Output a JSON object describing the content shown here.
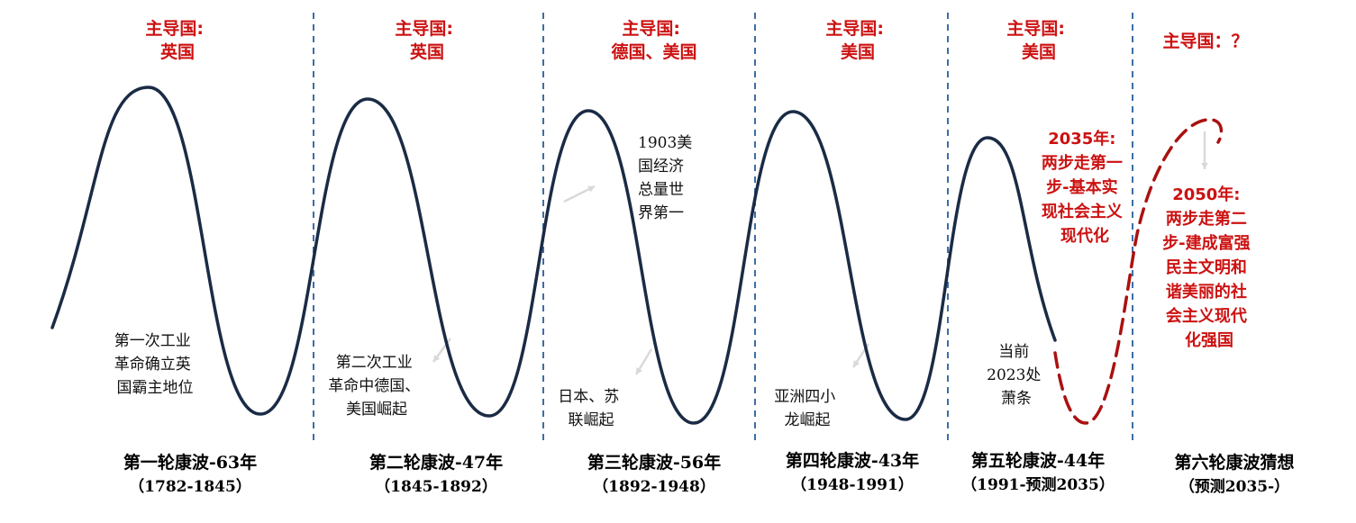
{
  "colors": {
    "wave": "#1a2b45",
    "forecast": "#aa1111",
    "divider": "#3d6ea5",
    "leader": "#cc1111",
    "arrow": "#d9d9d9"
  },
  "cycles": [
    {
      "leader_lines": [
        "主导国:",
        "英国"
      ],
      "annotation": [
        "第一次工业",
        "革命确立英",
        "国霸主地位"
      ],
      "title": "第一轮康波-63年",
      "period": "（1782-1845）"
    },
    {
      "leader_lines": [
        "主导国:",
        "英国"
      ],
      "annotation": [
        "第二次工业",
        "革命中德国、",
        "美国崛起"
      ],
      "title": "第二轮康波-47年",
      "period": "（1845-1892）"
    },
    {
      "leader_lines": [
        "主导国:",
        "德国、美国"
      ],
      "annotation": [
        "日本、苏",
        "联崛起"
      ],
      "annotation_top": [
        "1903美",
        "国经济",
        "总量世",
        "界第一"
      ],
      "title": "第三轮康波-56年",
      "period": "（1892-1948）"
    },
    {
      "leader_lines": [
        "主导国:",
        "美国"
      ],
      "annotation": [
        "亚洲四小",
        "龙崛起"
      ],
      "title": "第四轮康波-43年",
      "period": "（1948-1991）"
    },
    {
      "leader_lines": [
        "主导国:",
        "美国"
      ],
      "annotation": [
        "当前",
        "2023处",
        "萧条"
      ],
      "annotation_red": [
        "2035年:",
        "两步走第一",
        "步-基本实",
        "现社会主义",
        "现代化"
      ],
      "title": "第五轮康波-44年",
      "period": "（1991-预测2035）"
    },
    {
      "leader_lines": [
        "主导国：？"
      ],
      "annotation_red": [
        "2050年:",
        "两步走第二",
        "步-建成富强",
        "民主文明和",
        "谐美丽的社",
        "会主义现代",
        "化强国"
      ],
      "title": "第六轮康波猜想",
      "period": "（预测2035-）"
    }
  ]
}
